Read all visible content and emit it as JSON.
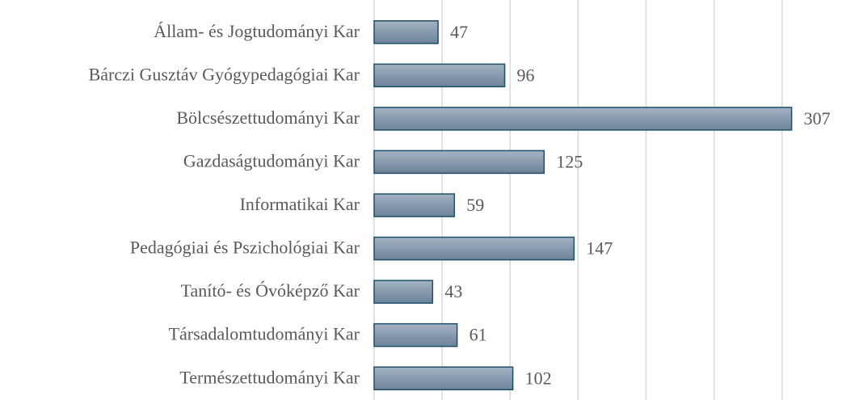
{
  "chart_data": {
    "type": "barh",
    "categories": [
      "Állam- és Jogtudományi Kar",
      "Bárczi Gusztáv Gyógypedagógiai Kar",
      "Bölcsészettudományi Kar",
      "Gazdaságtudományi Kar",
      "Informatikai Kar",
      "Pedagógiai és Pszichológiai Kar",
      "Tanító- és Óvóképző Kar",
      "Társadalomtudományi Kar",
      "Természettudományi Kar"
    ],
    "values": [
      47,
      96,
      307,
      125,
      59,
      147,
      43,
      61,
      102
    ],
    "color": "#8197ad",
    "edgecolor": "#1f4e6a",
    "xlim": [
      0,
      350
    ],
    "xticks": [
      0,
      50,
      100,
      150,
      200,
      250,
      300
    ],
    "grid": true
  }
}
